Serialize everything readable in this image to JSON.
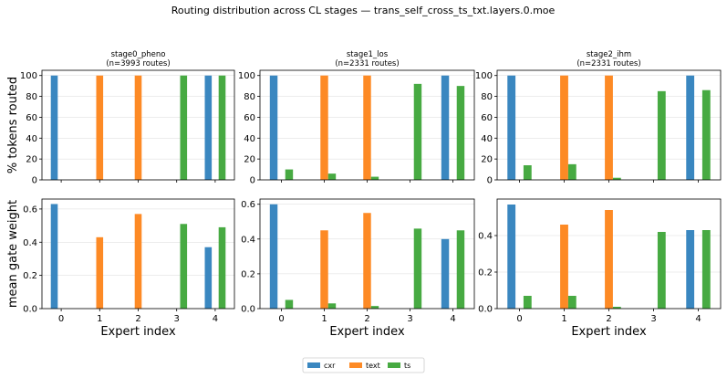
{
  "figure": {
    "suptitle": "Routing distribution across CL stages — trans_self_cross_ts_txt.layers.0.moe"
  },
  "colors": {
    "cxr": "#3a87c0",
    "text": "#fd8a25",
    "ts": "#47aa42"
  },
  "legend": {
    "placement": "bottom-center",
    "entries": [
      {
        "key": "cxr",
        "label": "cxr"
      },
      {
        "key": "text",
        "label": "text"
      },
      {
        "key": "ts",
        "label": "ts"
      }
    ]
  },
  "chart_data": [
    {
      "type": "bar",
      "stage": "stage0_pheno",
      "title": "stage0_pheno",
      "subtitle": "(n=3993 routes)",
      "categories": [
        0,
        1,
        2,
        3,
        4
      ],
      "xlabel": "",
      "ylabel": "% tokens routed",
      "ylim": [
        0,
        105
      ],
      "yticks": [
        0,
        20,
        40,
        60,
        80,
        100
      ],
      "series": [
        {
          "name": "cxr",
          "values": [
            100,
            0,
            0,
            0,
            100
          ]
        },
        {
          "name": "text",
          "values": [
            0,
            100,
            100,
            0,
            0
          ]
        },
        {
          "name": "ts",
          "values": [
            0,
            0,
            0,
            100,
            100
          ]
        }
      ]
    },
    {
      "type": "bar",
      "stage": "stage1_los",
      "title": "stage1_los",
      "subtitle": "(n=2331 routes)",
      "categories": [
        0,
        1,
        2,
        3,
        4
      ],
      "xlabel": "",
      "ylabel": "",
      "ylim": [
        0,
        105
      ],
      "yticks": [
        0,
        20,
        40,
        60,
        80,
        100
      ],
      "series": [
        {
          "name": "cxr",
          "values": [
            100,
            0,
            0,
            0,
            100
          ]
        },
        {
          "name": "text",
          "values": [
            0,
            100,
            100,
            0,
            0
          ]
        },
        {
          "name": "ts",
          "values": [
            10,
            6,
            3,
            92,
            90
          ]
        }
      ]
    },
    {
      "type": "bar",
      "stage": "stage2_ihm",
      "title": "stage2_ihm",
      "subtitle": "(n=2331 routes)",
      "categories": [
        0,
        1,
        2,
        3,
        4
      ],
      "xlabel": "",
      "ylabel": "",
      "ylim": [
        0,
        105
      ],
      "yticks": [
        0,
        20,
        40,
        60,
        80,
        100
      ],
      "series": [
        {
          "name": "cxr",
          "values": [
            100,
            0,
            0,
            0,
            100
          ]
        },
        {
          "name": "text",
          "values": [
            0,
            100,
            100,
            0,
            0
          ]
        },
        {
          "name": "ts",
          "values": [
            14,
            15,
            2,
            85,
            86
          ]
        }
      ]
    },
    {
      "type": "bar",
      "stage": "stage0_pheno",
      "title": "",
      "subtitle": "",
      "categories": [
        0,
        1,
        2,
        3,
        4
      ],
      "xlabel": "Expert index",
      "ylabel": "mean gate weight",
      "ylim": [
        0,
        0.66
      ],
      "yticks": [
        0.0,
        0.2,
        0.4,
        0.6
      ],
      "series": [
        {
          "name": "cxr",
          "values": [
            0.63,
            0,
            0,
            0,
            0.37
          ]
        },
        {
          "name": "text",
          "values": [
            0,
            0.43,
            0.57,
            0,
            0
          ]
        },
        {
          "name": "ts",
          "values": [
            0,
            0,
            0,
            0.51,
            0.49
          ]
        }
      ]
    },
    {
      "type": "bar",
      "stage": "stage1_los",
      "title": "",
      "subtitle": "",
      "categories": [
        0,
        1,
        2,
        3,
        4
      ],
      "xlabel": "Expert index",
      "ylabel": "",
      "ylim": [
        0,
        0.63
      ],
      "yticks": [
        0.0,
        0.2,
        0.4,
        0.6
      ],
      "series": [
        {
          "name": "cxr",
          "values": [
            0.6,
            0,
            0,
            0,
            0.4
          ]
        },
        {
          "name": "text",
          "values": [
            0,
            0.45,
            0.55,
            0,
            0
          ]
        },
        {
          "name": "ts",
          "values": [
            0.05,
            0.03,
            0.015,
            0.46,
            0.45
          ]
        }
      ]
    },
    {
      "type": "bar",
      "stage": "stage2_ihm",
      "title": "",
      "subtitle": "",
      "categories": [
        0,
        1,
        2,
        3,
        4
      ],
      "xlabel": "Expert index",
      "ylabel": "",
      "ylim": [
        0,
        0.6
      ],
      "yticks": [
        0.0,
        0.2,
        0.4
      ],
      "series": [
        {
          "name": "cxr",
          "values": [
            0.57,
            0,
            0,
            0,
            0.43
          ]
        },
        {
          "name": "text",
          "values": [
            0,
            0.46,
            0.54,
            0,
            0
          ]
        },
        {
          "name": "ts",
          "values": [
            0.07,
            0.07,
            0.01,
            0.42,
            0.43
          ]
        }
      ]
    }
  ]
}
